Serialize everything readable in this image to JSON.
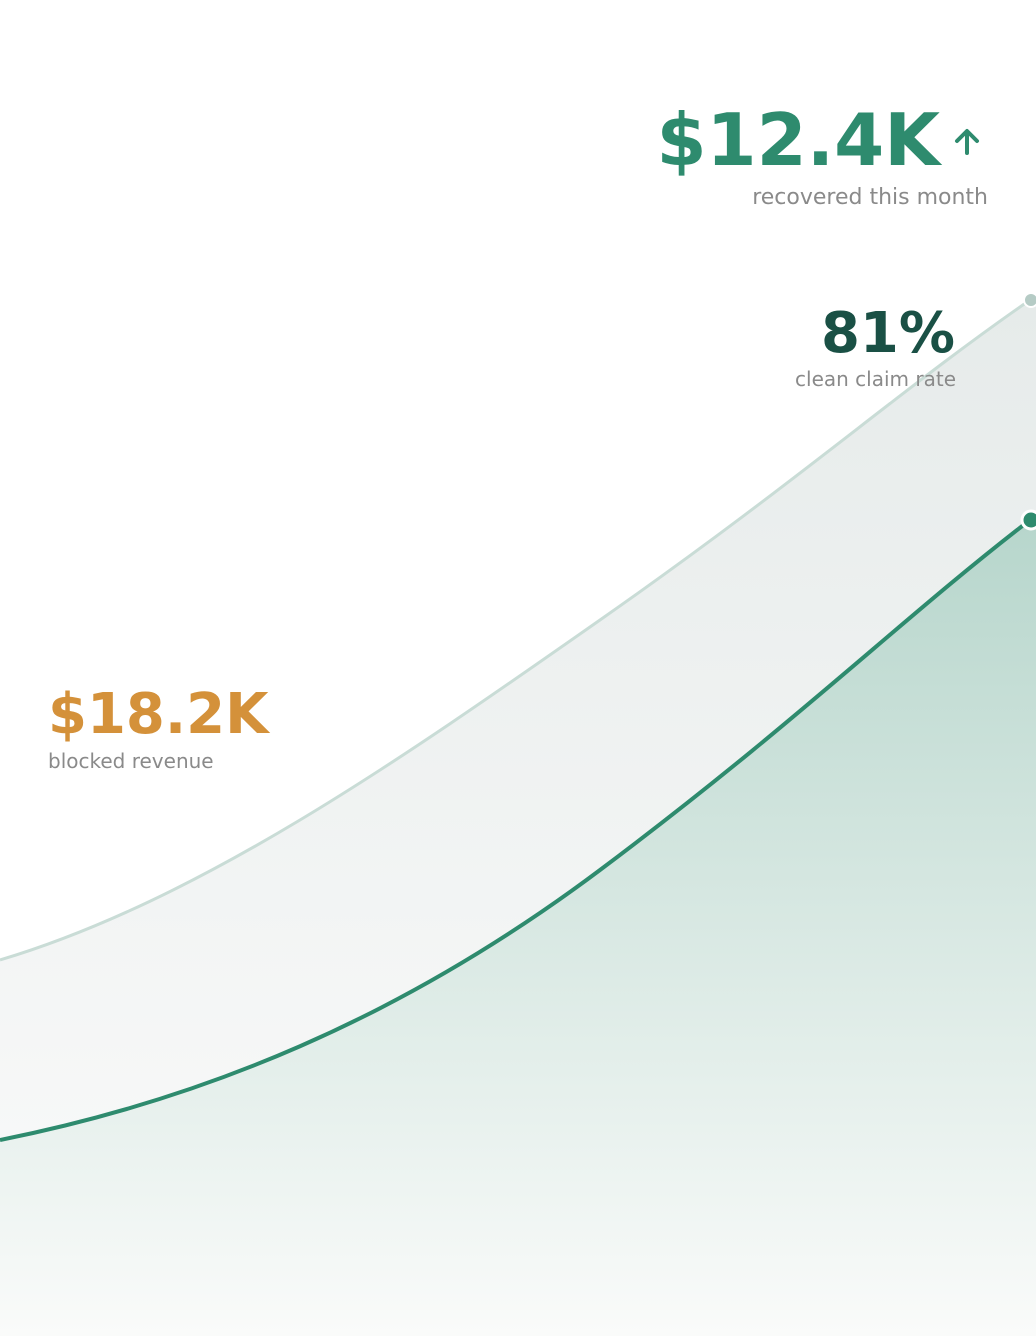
{
  "stats": [
    {
      "value": "$12.4K",
      "label": "recovered this month"
    },
    {
      "value": "81%",
      "label": "clean claim rate"
    },
    {
      "value": "$18.2K",
      "label": "blocked revenue"
    }
  ]
}
